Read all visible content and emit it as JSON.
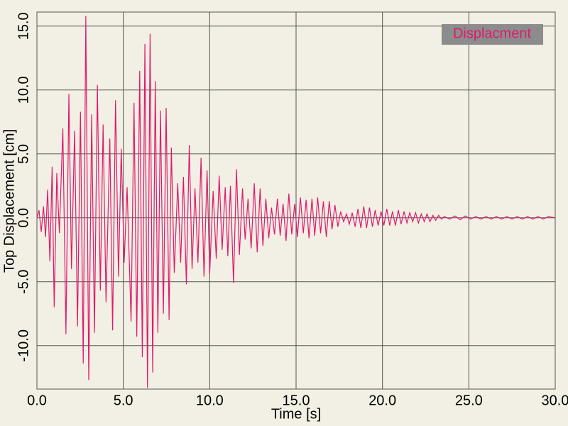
{
  "chart_data": {
    "type": "line",
    "xlabel": "Time [s]",
    "ylabel": "Top Displacement [cm]",
    "x": [
      0.0,
      0.12,
      0.25,
      0.38,
      0.5,
      0.62,
      0.75,
      0.88,
      1.0,
      1.15,
      1.3,
      1.5,
      1.68,
      1.85,
      2.0,
      2.18,
      2.35,
      2.52,
      2.68,
      2.83,
      3.0,
      3.17,
      3.33,
      3.5,
      3.67,
      3.83,
      4.0,
      4.22,
      4.38,
      4.55,
      4.72,
      4.88,
      5.05,
      5.22,
      5.45,
      5.62,
      5.78,
      5.95,
      6.1,
      6.25,
      6.4,
      6.55,
      6.7,
      6.85,
      7.0,
      7.15,
      7.32,
      7.48,
      7.65,
      7.78,
      7.95,
      8.15,
      8.32,
      8.48,
      8.65,
      8.82,
      8.98,
      9.15,
      9.32,
      9.5,
      9.67,
      9.85,
      10.0,
      10.2,
      10.38,
      10.55,
      10.72,
      10.9,
      11.05,
      11.2,
      11.38,
      11.55,
      11.72,
      11.9,
      12.05,
      12.22,
      12.4,
      12.58,
      12.75,
      12.92,
      13.08,
      13.25,
      13.42,
      13.58,
      13.75,
      13.92,
      14.08,
      14.25,
      14.42,
      14.58,
      14.75,
      14.92,
      15.08,
      15.25,
      15.42,
      15.58,
      15.75,
      15.92,
      16.08,
      16.25,
      16.42,
      16.58,
      16.75,
      16.92,
      17.08,
      17.25,
      17.42,
      17.58,
      17.75,
      17.92,
      18.08,
      18.25,
      18.42,
      18.58,
      18.75,
      18.92,
      19.08,
      19.25,
      19.42,
      19.58,
      19.75,
      19.92,
      20.08,
      20.25,
      20.42,
      20.58,
      20.75,
      20.92,
      21.08,
      21.25,
      21.42,
      21.58,
      21.75,
      21.92,
      22.08,
      22.25,
      22.42,
      22.58,
      22.75,
      22.92,
      23.08,
      23.25,
      23.42,
      23.58,
      23.9,
      24.2,
      24.5,
      24.8,
      25.1,
      25.4,
      25.7,
      26.0,
      26.3,
      26.6,
      26.9,
      27.2,
      27.5,
      27.8,
      28.1,
      28.4,
      28.7,
      29.0,
      29.3,
      29.6,
      30.0
    ],
    "series": [
      {
        "name": "Displacment",
        "color": "#e0196e",
        "values": [
          0,
          0.6,
          -1.1,
          0.9,
          -1.5,
          2.2,
          -3.4,
          4.0,
          -7.0,
          3.5,
          -1.2,
          7.0,
          -9.1,
          9.7,
          -4.0,
          6.8,
          -8.5,
          8.3,
          -11.4,
          15.8,
          -12.7,
          8.1,
          -9.0,
          10.4,
          -5.7,
          7.3,
          -6.6,
          6.2,
          -8.8,
          9.2,
          -4.6,
          5.4,
          -3.5,
          2.4,
          -8.1,
          9.0,
          -9.3,
          11.5,
          -10.9,
          13.6,
          -13.3,
          14.4,
          -12.1,
          10.7,
          -9.0,
          8.4,
          -7.5,
          8.6,
          -8.0,
          5.5,
          -4.3,
          2.7,
          -3.5,
          3.2,
          -5.2,
          5.7,
          -4.0,
          2.3,
          -3.5,
          4.7,
          -4.6,
          3.7,
          -4.4,
          2.1,
          -3.2,
          3.3,
          -2.5,
          2.4,
          -3.0,
          2.5,
          -5.1,
          3.8,
          -2.9,
          2.3,
          -1.7,
          1.5,
          -2.4,
          2.7,
          -2.7,
          2.3,
          -2.2,
          1.5,
          -1.6,
          0.8,
          -1.3,
          1.5,
          -1.4,
          1.1,
          -1.8,
          1.9,
          -1.3,
          1.1,
          -1.5,
          1.6,
          -1.2,
          1.4,
          -1.6,
          1.5,
          -1.4,
          1.6,
          -1.2,
          1.3,
          -1.5,
          1.3,
          -0.9,
          1.0,
          -0.7,
          0.5,
          -0.3,
          0.3,
          -0.5,
          0.4,
          -0.7,
          0.7,
          -0.8,
          0.9,
          -0.8,
          0.8,
          -0.7,
          0.6,
          -0.6,
          0.5,
          -0.6,
          0.7,
          -0.6,
          0.5,
          -0.6,
          0.6,
          -0.5,
          0.5,
          -0.4,
          0.4,
          -0.3,
          0.4,
          -0.4,
          0.3,
          -0.3,
          0.3,
          -0.3,
          0.2,
          -0.2,
          0.2,
          -0.1,
          0.1,
          -0.1,
          0.15,
          -0.15,
          0.15,
          -0.1,
          0.1,
          -0.1,
          0.1,
          -0.1,
          0.1,
          -0.1,
          0.1,
          -0.1,
          0.1,
          -0.1,
          0.1,
          -0.1,
          0.1,
          -0.1,
          0.1,
          0
        ]
      }
    ],
    "xlim": [
      0,
      30
    ],
    "ylim": [
      -13.4,
      16.1
    ],
    "xticks": [
      {
        "value": 0,
        "label": "0.0"
      },
      {
        "value": 5,
        "label": "5.0"
      },
      {
        "value": 10,
        "label": "10.0"
      },
      {
        "value": 15,
        "label": "15.0"
      },
      {
        "value": 20,
        "label": "20.0"
      },
      {
        "value": 25,
        "label": "25.0"
      },
      {
        "value": 30,
        "label": "30.0"
      }
    ],
    "yticks": [
      {
        "value": -10,
        "label": "-10.0"
      },
      {
        "value": -5,
        "label": "-5.0"
      },
      {
        "value": 0,
        "label": "0.0"
      },
      {
        "value": 5,
        "label": "5.0"
      },
      {
        "value": 10,
        "label": "10.0"
      },
      {
        "value": 15,
        "label": "15.0"
      }
    ],
    "grid": true,
    "legend": "upper right"
  }
}
